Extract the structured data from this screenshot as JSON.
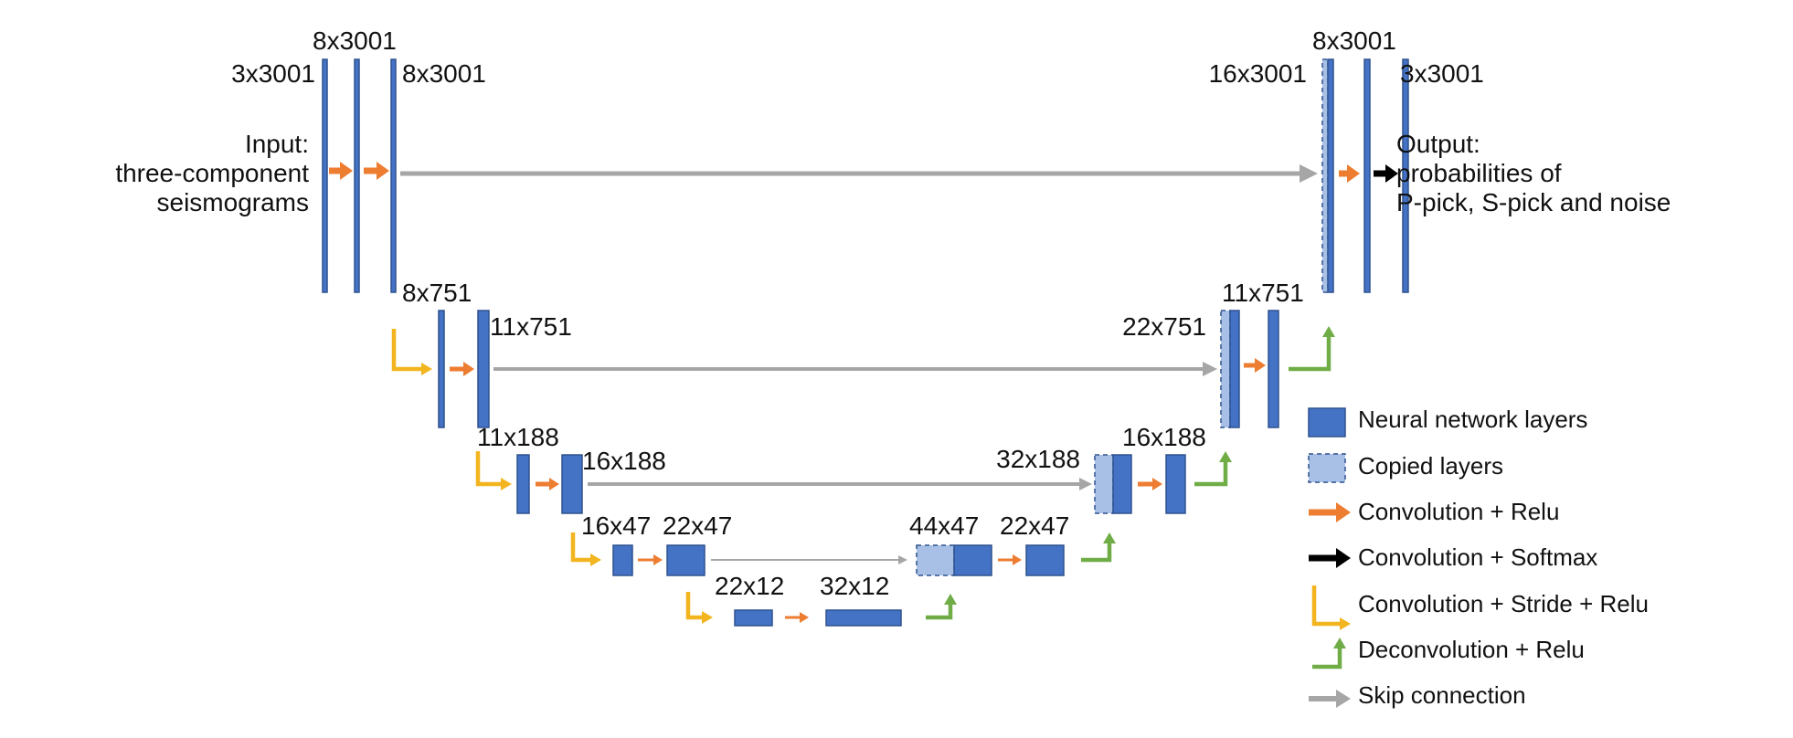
{
  "colors": {
    "layer_fill": "#4472c4",
    "layer_stroke": "#2f528f",
    "copied_fill": "#a9c0e6",
    "conv_relu": "#ed7d31",
    "conv_softmax": "#000000",
    "conv_stride": "#f2b51f",
    "deconv": "#70ad47",
    "skip": "#a6a6a6"
  },
  "icons": {
    "conv_relu": "orange-arrow-icon",
    "conv_softmax": "black-arrow-icon",
    "conv_stride": "yellow-bent-arrow-down-right-icon",
    "deconv": "green-bent-arrow-up-icon",
    "skip": "gray-arrow-icon"
  },
  "input_text": [
    "Input:",
    "three-component",
    "seismograms"
  ],
  "output_text": [
    "Output:",
    "probabilities of",
    "P-pick, S-pick and noise"
  ],
  "dims": {
    "in_3x3001": "3x3001",
    "enc1_8x3001_a": "8x3001",
    "enc1_8x3001_b": "8x3001",
    "enc2_8x751": "8x751",
    "enc2_11x751": "11x751",
    "enc3_11x188": "11x188",
    "enc3_16x188": "16x188",
    "enc4_16x47": "16x47",
    "enc4_22x47": "22x47",
    "bott_22x12": "22x12",
    "bott_32x12": "32x12",
    "dec4_44x47": "44x47",
    "dec4_22x47": "22x47",
    "dec3_32x188": "32x188",
    "dec3_16x188": "16x188",
    "dec2_22x751": "22x751",
    "dec2_11x751": "11x751",
    "dec1_16x3001": "16x3001",
    "dec1_8x3001": "8x3001",
    "out_3x3001": "3x3001"
  },
  "legend": [
    {
      "key": "layer",
      "label": "Neural network layers"
    },
    {
      "key": "copied",
      "label": "Copied layers"
    },
    {
      "key": "conv_relu",
      "label": "Convolution + Relu"
    },
    {
      "key": "conv_softmax",
      "label": "Convolution + Softmax"
    },
    {
      "key": "conv_stride",
      "label": "Convolution + Stride + Relu"
    },
    {
      "key": "deconv",
      "label": "Deconvolution + Relu"
    },
    {
      "key": "skip",
      "label": "Skip connection"
    }
  ]
}
